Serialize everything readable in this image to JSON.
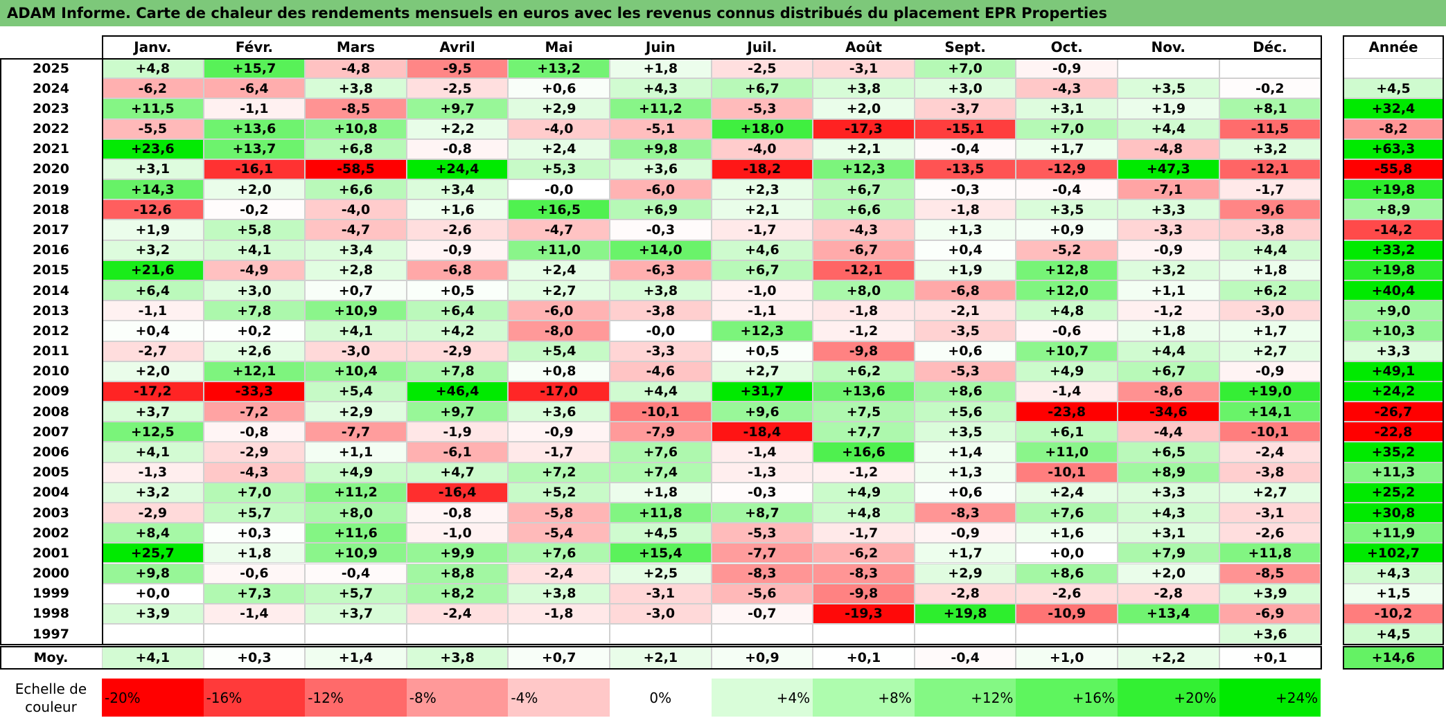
{
  "title": "ADAM Informe. Carte de chaleur des rendements mensuels en euros avec les revenus connus distribués du placement EPR Properties",
  "chart_data": {
    "type": "heatmap",
    "title": "ADAM Informe. Carte de chaleur des rendements mensuels en euros avec les revenus connus distribués du placement EPR Properties",
    "columns": [
      "Janv.",
      "Févr.",
      "Mars",
      "Avril",
      "Mai",
      "Juin",
      "Juil.",
      "Août",
      "Sept.",
      "Oct.",
      "Nov.",
      "Déc."
    ],
    "annual_header": "Année",
    "rows": [
      {
        "year": "2025",
        "values": [
          "+4,8",
          "+15,7",
          "-4,8",
          "-9,5",
          "+13,2",
          "+1,8",
          "-2,5",
          "-3,1",
          "+7,0",
          "-0,9",
          "",
          ""
        ],
        "annual": ""
      },
      {
        "year": "2024",
        "values": [
          "-6,2",
          "-6,4",
          "+3,8",
          "-2,5",
          "+0,6",
          "+4,3",
          "+6,7",
          "+3,8",
          "+3,0",
          "-4,3",
          "+3,5",
          "-0,2"
        ],
        "annual": "+4,5"
      },
      {
        "year": "2023",
        "values": [
          "+11,5",
          "-1,1",
          "-8,5",
          "+9,7",
          "+2,9",
          "+11,2",
          "-5,3",
          "+2,0",
          "-3,7",
          "+3,1",
          "+1,9",
          "+8,1"
        ],
        "annual": "+32,4"
      },
      {
        "year": "2022",
        "values": [
          "-5,5",
          "+13,6",
          "+10,8",
          "+2,2",
          "-4,0",
          "-5,1",
          "+18,0",
          "-17,3",
          "-15,1",
          "+7,0",
          "+4,4",
          "-11,5"
        ],
        "annual": "-8,2"
      },
      {
        "year": "2021",
        "values": [
          "+23,6",
          "+13,7",
          "+6,8",
          "-0,8",
          "+2,4",
          "+9,8",
          "-4,0",
          "+2,1",
          "-0,4",
          "+1,7",
          "-4,8",
          "+3,2"
        ],
        "annual": "+63,3"
      },
      {
        "year": "2020",
        "values": [
          "+3,1",
          "-16,1",
          "-58,5",
          "+24,4",
          "+5,3",
          "+3,6",
          "-18,2",
          "+12,3",
          "-13,5",
          "-12,9",
          "+47,3",
          "-12,1"
        ],
        "annual": "-55,8"
      },
      {
        "year": "2019",
        "values": [
          "+14,3",
          "+2,0",
          "+6,6",
          "+3,4",
          "-0,0",
          "-6,0",
          "+2,3",
          "+6,7",
          "-0,3",
          "-0,4",
          "-7,1",
          "-1,7"
        ],
        "annual": "+19,8"
      },
      {
        "year": "2018",
        "values": [
          "-12,6",
          "-0,2",
          "-4,0",
          "+1,6",
          "+16,5",
          "+6,9",
          "+2,1",
          "+6,6",
          "-1,8",
          "+3,5",
          "+3,3",
          "-9,6"
        ],
        "annual": "+8,9"
      },
      {
        "year": "2017",
        "values": [
          "+1,9",
          "+5,8",
          "-4,7",
          "-2,6",
          "-4,7",
          "-0,3",
          "-1,7",
          "-4,3",
          "+1,3",
          "+0,9",
          "-3,3",
          "-3,8"
        ],
        "annual": "-14,2"
      },
      {
        "year": "2016",
        "values": [
          "+3,2",
          "+4,1",
          "+3,4",
          "-0,9",
          "+11,0",
          "+14,0",
          "+4,6",
          "-6,7",
          "+0,4",
          "-5,2",
          "-0,9",
          "+4,4"
        ],
        "annual": "+33,2"
      },
      {
        "year": "2015",
        "values": [
          "+21,6",
          "-4,9",
          "+2,8",
          "-6,8",
          "+2,4",
          "-6,3",
          "+6,7",
          "-12,1",
          "+1,9",
          "+12,8",
          "+3,2",
          "+1,8"
        ],
        "annual": "+19,8"
      },
      {
        "year": "2014",
        "values": [
          "+6,4",
          "+3,0",
          "+0,7",
          "+0,5",
          "+2,7",
          "+3,8",
          "-1,0",
          "+8,0",
          "-6,8",
          "+12,0",
          "+1,1",
          "+6,2"
        ],
        "annual": "+40,4"
      },
      {
        "year": "2013",
        "values": [
          "-1,1",
          "+7,8",
          "+10,9",
          "+6,4",
          "-6,0",
          "-3,8",
          "-1,1",
          "-1,8",
          "-2,1",
          "+4,8",
          "-1,2",
          "-3,0"
        ],
        "annual": "+9,0"
      },
      {
        "year": "2012",
        "values": [
          "+0,4",
          "+0,2",
          "+4,1",
          "+4,2",
          "-8,0",
          "-0,0",
          "+12,3",
          "-1,2",
          "-3,5",
          "-0,6",
          "+1,8",
          "+1,7"
        ],
        "annual": "+10,3"
      },
      {
        "year": "2011",
        "values": [
          "-2,7",
          "+2,6",
          "-3,0",
          "-2,9",
          "+5,4",
          "-3,3",
          "+0,5",
          "-9,8",
          "+0,6",
          "+10,7",
          "+4,4",
          "+2,7"
        ],
        "annual": "+3,3"
      },
      {
        "year": "2010",
        "values": [
          "+2,0",
          "+12,1",
          "+10,4",
          "+7,8",
          "+0,8",
          "-4,6",
          "+2,7",
          "+6,2",
          "-5,3",
          "+4,9",
          "+6,7",
          "-0,9"
        ],
        "annual": "+49,1"
      },
      {
        "year": "2009",
        "values": [
          "-17,2",
          "-33,3",
          "+5,4",
          "+46,4",
          "-17,0",
          "+4,4",
          "+31,7",
          "+13,6",
          "+8,6",
          "-1,4",
          "-8,6",
          "+19,0"
        ],
        "annual": "+24,2"
      },
      {
        "year": "2008",
        "values": [
          "+3,7",
          "-7,2",
          "+2,9",
          "+9,7",
          "+3,6",
          "-10,1",
          "+9,6",
          "+7,5",
          "+5,6",
          "-23,8",
          "-34,6",
          "+14,1"
        ],
        "annual": "-26,7"
      },
      {
        "year": "2007",
        "values": [
          "+12,5",
          "-0,8",
          "-7,7",
          "-1,9",
          "-0,9",
          "-7,9",
          "-18,4",
          "+7,7",
          "+3,5",
          "+6,1",
          "-4,4",
          "-10,1"
        ],
        "annual": "-22,8"
      },
      {
        "year": "2006",
        "values": [
          "+4,1",
          "-2,9",
          "+1,1",
          "-6,1",
          "-1,7",
          "+7,6",
          "-1,4",
          "+16,6",
          "+1,4",
          "+11,0",
          "+6,5",
          "-2,4"
        ],
        "annual": "+35,2"
      },
      {
        "year": "2005",
        "values": [
          "-1,3",
          "-4,3",
          "+4,9",
          "+4,7",
          "+7,2",
          "+7,4",
          "-1,3",
          "-1,2",
          "+1,3",
          "-10,1",
          "+8,9",
          "-3,8"
        ],
        "annual": "+11,3"
      },
      {
        "year": "2004",
        "values": [
          "+3,2",
          "+7,0",
          "+11,2",
          "-16,4",
          "+5,2",
          "+1,8",
          "-0,3",
          "+4,9",
          "+0,6",
          "+2,4",
          "+3,3",
          "+2,7"
        ],
        "annual": "+25,2"
      },
      {
        "year": "2003",
        "values": [
          "-2,9",
          "+5,7",
          "+8,0",
          "-0,8",
          "-5,8",
          "+11,8",
          "+8,7",
          "+4,8",
          "-8,3",
          "+7,6",
          "+4,3",
          "-3,1"
        ],
        "annual": "+30,8"
      },
      {
        "year": "2002",
        "values": [
          "+8,4",
          "+0,3",
          "+11,6",
          "-1,0",
          "-5,4",
          "+4,5",
          "-5,3",
          "-1,7",
          "-0,9",
          "+1,6",
          "+3,1",
          "-2,6"
        ],
        "annual": "+11,9"
      },
      {
        "year": "2001",
        "values": [
          "+25,7",
          "+1,8",
          "+10,9",
          "+9,9",
          "+7,6",
          "+15,4",
          "-7,7",
          "-6,2",
          "+1,7",
          "+0,0",
          "+7,9",
          "+11,8"
        ],
        "annual": "+102,7"
      },
      {
        "year": "2000",
        "values": [
          "+9,8",
          "-0,6",
          "-0,4",
          "+8,8",
          "-2,4",
          "+2,5",
          "-8,3",
          "-8,3",
          "+2,9",
          "+8,6",
          "+2,0",
          "-8,5"
        ],
        "annual": "+4,3"
      },
      {
        "year": "1999",
        "values": [
          "+0,0",
          "+7,3",
          "+5,7",
          "+8,2",
          "+3,8",
          "-3,1",
          "-5,6",
          "-9,8",
          "-2,8",
          "-2,6",
          "-2,8",
          "+3,9"
        ],
        "annual": "+1,5"
      },
      {
        "year": "1998",
        "values": [
          "+3,9",
          "-1,4",
          "+3,7",
          "-2,4",
          "-1,8",
          "-3,0",
          "-0,7",
          "-19,3",
          "+19,8",
          "-10,9",
          "+13,4",
          "-6,9"
        ],
        "annual": "-10,2"
      },
      {
        "year": "1997",
        "values": [
          "",
          "",
          "",
          "",
          "",
          "",
          "",
          "",
          "",
          "",
          "",
          "+3,6"
        ],
        "annual": "+4,5"
      }
    ],
    "average": {
      "label": "Moy.",
      "values": [
        "+4,1",
        "+0,3",
        "+1,4",
        "+3,8",
        "+0,7",
        "+2,1",
        "+0,9",
        "+0,1",
        "-0,4",
        "+1,0",
        "+2,2",
        "+0,1"
      ],
      "annual": "+14,6"
    },
    "legend": {
      "label": "Echelle de couleur",
      "steps": [
        "-20%",
        "-16%",
        "-12%",
        "-8%",
        "-4%",
        "0%",
        "+4%",
        "+8%",
        "+12%",
        "+16%",
        "+20%",
        "+24%"
      ],
      "colors": [
        "#ff0000",
        "#ff3a3a",
        "#ff6a6a",
        "#ff9999",
        "#ffc8c8",
        "#ffffff",
        "#d9fdd9",
        "#aefcae",
        "#84f884",
        "#5ef55e",
        "#33f033",
        "#00ea00"
      ]
    }
  }
}
